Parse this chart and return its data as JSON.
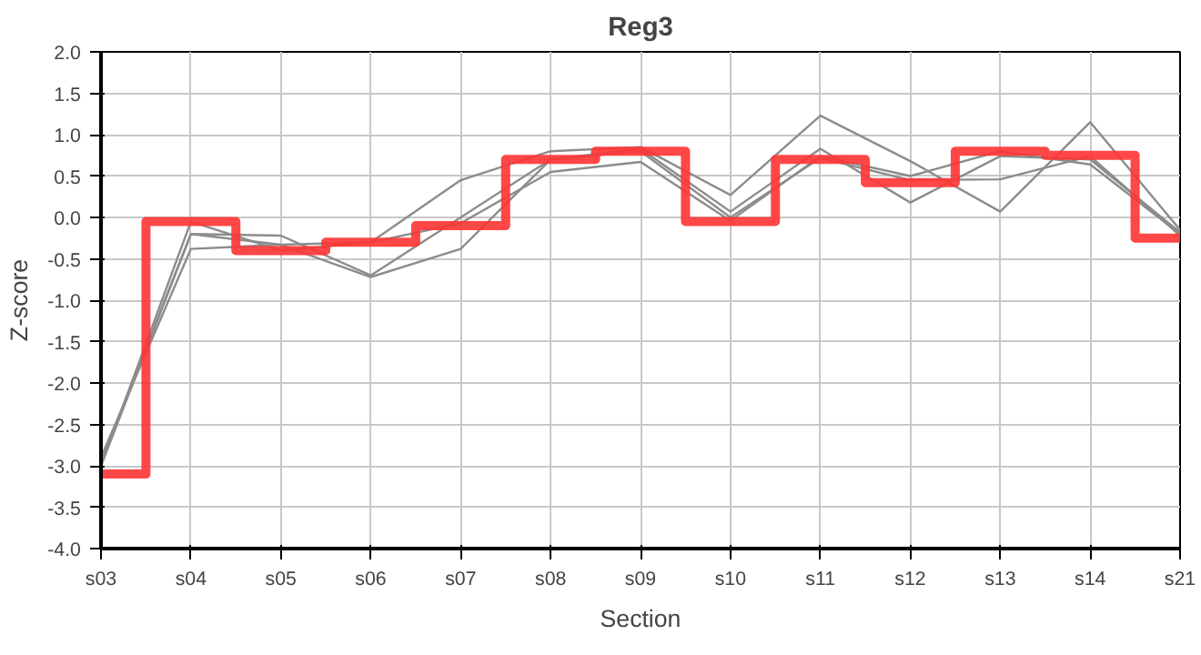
{
  "chart_data": {
    "type": "line",
    "title": "Reg3",
    "xlabel": "Section",
    "ylabel": "Z-score",
    "categories": [
      "s03",
      "s04",
      "s05",
      "s06",
      "s07",
      "s08",
      "s09",
      "s10",
      "s11",
      "s12",
      "s13",
      "s14",
      "s21"
    ],
    "ylim": [
      -4.0,
      2.0
    ],
    "yticks": [
      {
        "value": -4.0,
        "label": "-4.0"
      },
      {
        "value": -3.5,
        "label": "-3.5"
      },
      {
        "value": -3.0,
        "label": "-3.0"
      },
      {
        "value": -2.5,
        "label": "-2.5"
      },
      {
        "value": -2.0,
        "label": "-2.0"
      },
      {
        "value": -1.5,
        "label": "-1.5"
      },
      {
        "value": -1.0,
        "label": "-1.0"
      },
      {
        "value": -0.5,
        "label": "-0.5"
      },
      {
        "value": 0.0,
        "label": "0.0"
      },
      {
        "value": 0.5,
        "label": "0.5"
      },
      {
        "value": 1.0,
        "label": "1.0"
      },
      {
        "value": 1.5,
        "label": "1.5"
      },
      {
        "value": 2.0,
        "label": "2.0"
      }
    ],
    "grid": true,
    "series": [
      {
        "color": "#8c8c8c",
        "values": [
          -3.0,
          -0.05,
          -0.4,
          -0.3,
          0.45,
          0.8,
          0.85,
          0.27,
          1.23,
          0.68,
          0.07,
          1.15,
          -0.15
        ]
      },
      {
        "color": "#8c8c8c",
        "values": [
          -2.95,
          -0.2,
          -0.22,
          -0.7,
          0.0,
          0.7,
          0.83,
          0.07,
          0.83,
          0.18,
          0.74,
          0.7,
          -0.18
        ]
      },
      {
        "color": "#8c8c8c",
        "values": [
          -3.0,
          -0.2,
          -0.33,
          -0.3,
          -0.07,
          0.55,
          0.67,
          -0.04,
          0.74,
          0.5,
          0.8,
          0.64,
          -0.2
        ]
      },
      {
        "color": "#8c8c8c",
        "values": [
          -2.9,
          -0.38,
          -0.33,
          -0.72,
          -0.38,
          0.7,
          0.8,
          0.0,
          0.72,
          0.45,
          0.46,
          0.74,
          -0.22
        ]
      },
      {
        "type": "step",
        "color": "#ff3333",
        "values": [
          -3.1,
          -0.05,
          -0.4,
          -0.3,
          -0.1,
          0.7,
          0.8,
          -0.05,
          0.7,
          0.42,
          0.8,
          0.75,
          -0.25
        ]
      }
    ]
  }
}
